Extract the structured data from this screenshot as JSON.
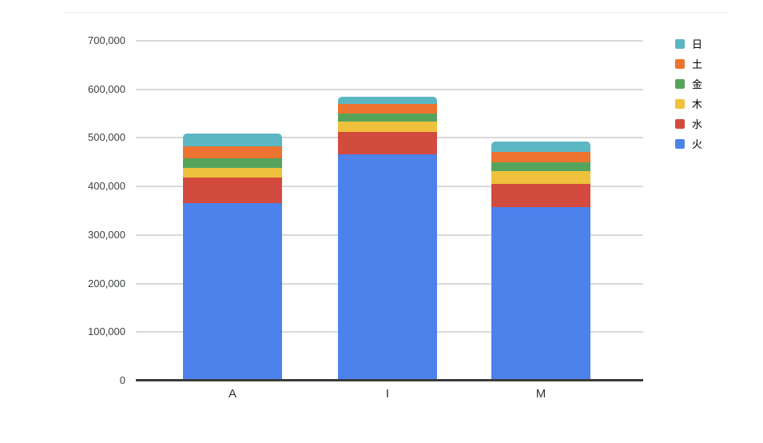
{
  "chart_data": {
    "type": "bar",
    "stacked": true,
    "title": "",
    "categories": [
      "A",
      "I",
      "M"
    ],
    "series": [
      {
        "name": "火",
        "color": "#4d81ec",
        "values": [
          365000,
          466000,
          357000
        ]
      },
      {
        "name": "水",
        "color": "#d34b3e",
        "values": [
          54000,
          47000,
          48000
        ]
      },
      {
        "name": "木",
        "color": "#efc13d",
        "values": [
          19000,
          20000,
          27000
        ]
      },
      {
        "name": "金",
        "color": "#55a45b",
        "values": [
          20000,
          17000,
          18000
        ]
      },
      {
        "name": "土",
        "color": "#ed7430",
        "values": [
          25000,
          20000,
          21000
        ]
      },
      {
        "name": "日",
        "color": "#5bb7c2",
        "values": [
          26000,
          15000,
          22000
        ]
      }
    ],
    "y_axis": {
      "min": 0,
      "max": 700000,
      "tick_interval": 100000,
      "tick_labels": [
        "0",
        "100,000",
        "200,000",
        "300,000",
        "400,000",
        "500,000",
        "600,000",
        "700,000"
      ]
    },
    "x_axis": {
      "tick_labels": [
        "A",
        "I",
        "M"
      ]
    },
    "grid": true,
    "legend": {
      "position": "right",
      "items": [
        {
          "label": "日",
          "color": "#5bb7c2"
        },
        {
          "label": "土",
          "color": "#ed7430"
        },
        {
          "label": "金",
          "color": "#55a45b"
        },
        {
          "label": "木",
          "color": "#efc13d"
        },
        {
          "label": "水",
          "color": "#d34b3e"
        },
        {
          "label": "火",
          "color": "#4d81ec"
        }
      ]
    },
    "colors": {
      "background": "#ffffff",
      "gridline": "#d9d9d9",
      "baseline": "#3b3b3b",
      "axis_text": "#3c4043",
      "category_text": "#333333"
    }
  }
}
